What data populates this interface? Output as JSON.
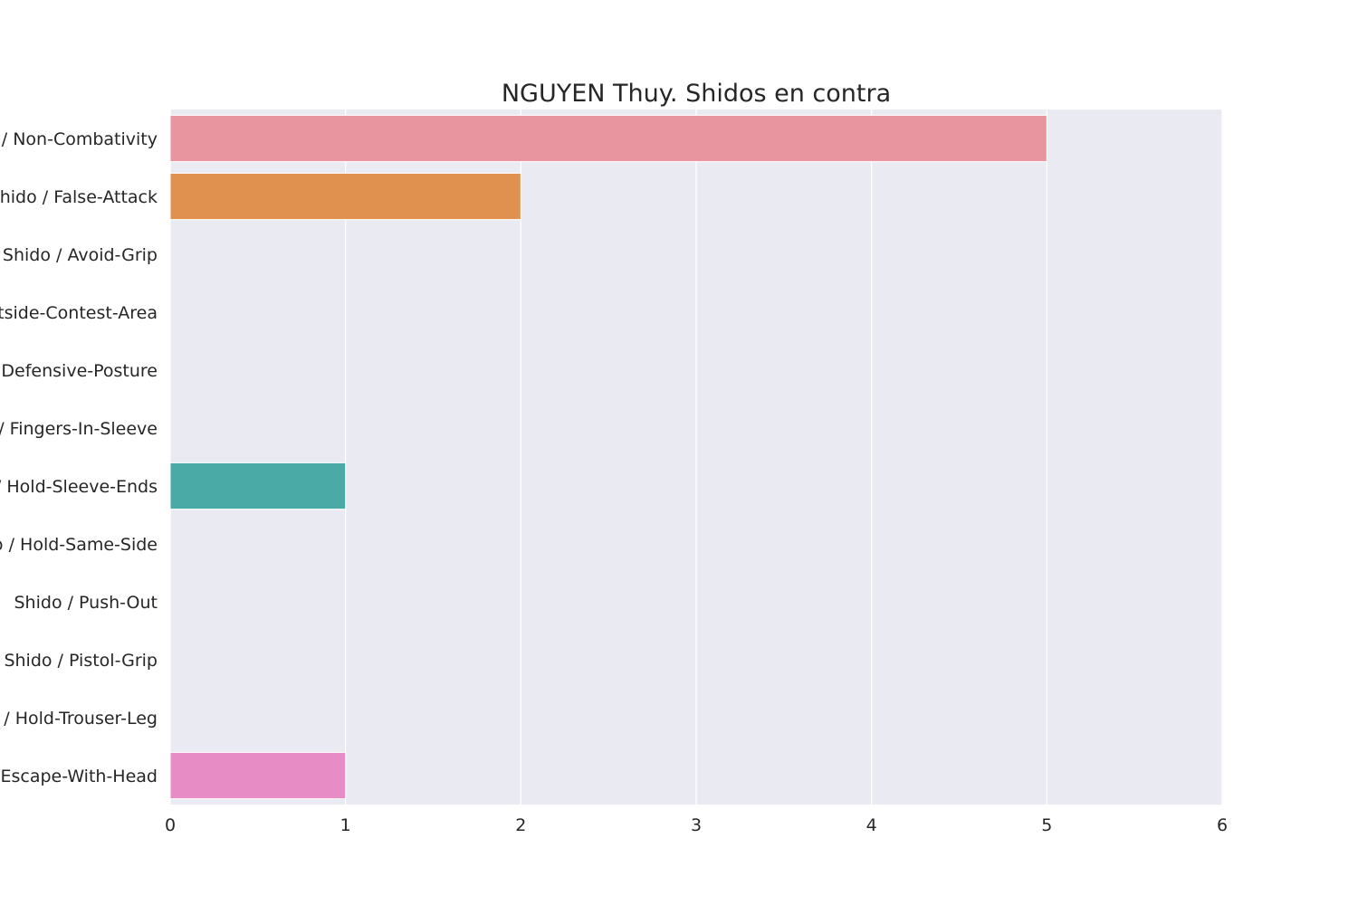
{
  "chart_data": {
    "type": "bar",
    "orientation": "horizontal",
    "title": "NGUYEN Thuy. Shidos en contra",
    "xlabel": "",
    "ylabel": "",
    "xlim": [
      0,
      6
    ],
    "x_ticks": [
      "0",
      "1",
      "2",
      "3",
      "4",
      "5",
      "6"
    ],
    "grid": true,
    "background": "#eaeaf2",
    "categories": [
      "Shido / Non-Combativity",
      "Shido / False-Attack",
      "Shido / Avoid-Grip",
      "Shido / Outside-Contest-Area",
      "Shido / Defensive-Posture",
      "Shido / Fingers-In-Sleeve",
      "Shido / Hold-Sleeve-Ends",
      "Shido / Hold-Same-Side",
      "Shido / Push-Out",
      "Shido / Pistol-Grip",
      "Shido / Hold-Trouser-Leg",
      "Shido / Escape-With-Head"
    ],
    "values": [
      5,
      2,
      0,
      0,
      0,
      0,
      1,
      0,
      0,
      0,
      0,
      1
    ],
    "colors": [
      "#e8959f",
      "#e0914f",
      "#b5a34a",
      "#8fb04c",
      "#52b157",
      "#55b09a",
      "#4aaba6",
      "#4ea9c4",
      "#7ba7e0",
      "#b89ae6",
      "#dc89db",
      "#e88cc6"
    ]
  }
}
